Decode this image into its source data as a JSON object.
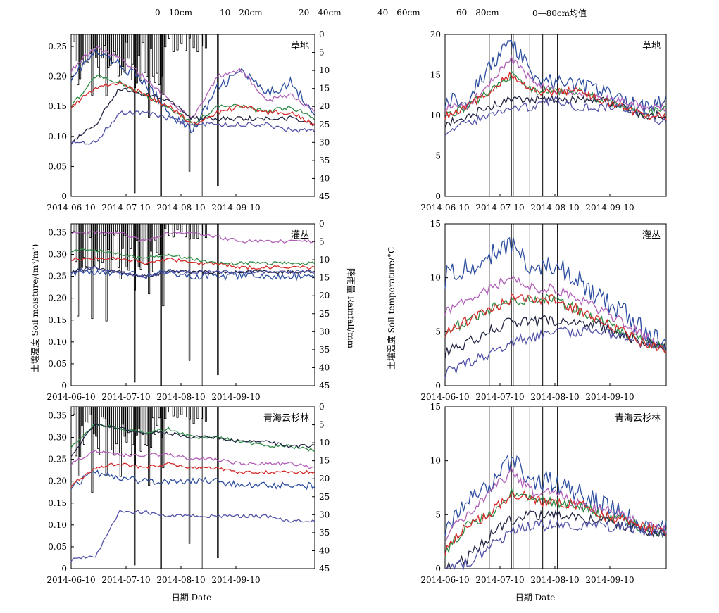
{
  "legend": [
    {
      "name": "0—10cm",
      "color": "#2e4f9f"
    },
    {
      "name": "10—20cm",
      "color": "#b05fb8"
    },
    {
      "name": "20—40cm",
      "color": "#2e8b45"
    },
    {
      "name": "40—60cm",
      "color": "#232642"
    },
    {
      "name": "60—80cm",
      "color": "#5353a8"
    },
    {
      "name": "0—80cm均值",
      "color": "#d42a2a"
    }
  ],
  "labels": {
    "moisture_ylabel": "土壤湿度 Soil moisture/(m³/m³)",
    "rain_ylabel": "降雨量 Rainfall/mm",
    "temp_ylabel": "土壤温度 Soil temperature/°C",
    "xlabel_left": "日期  Date",
    "xlabel_right": "日期  Date"
  },
  "chart_data": [
    {
      "type": "line",
      "panel": "moisture",
      "site": "草地",
      "x_ticks": [
        "2014-06-10",
        "2014-07-10",
        "2014-08-10",
        "2014-09-10"
      ],
      "ylim": [
        0,
        0.27
      ],
      "yticks": [
        0,
        0.05,
        0.1,
        0.15,
        0.2,
        0.25
      ],
      "y2lim": [
        0,
        45
      ],
      "y2ticks": [
        0,
        5,
        10,
        15,
        20,
        25,
        30,
        35,
        40,
        45
      ],
      "anchors": [
        0,
        12,
        24,
        36,
        48,
        60,
        72,
        84,
        96,
        108,
        120
      ],
      "series": [
        {
          "name": "0—10cm",
          "values": [
            0.2,
            0.24,
            0.22,
            0.19,
            0.14,
            0.11,
            0.18,
            0.21,
            0.17,
            0.19,
            0.14
          ]
        },
        {
          "name": "10—20cm",
          "values": [
            0.21,
            0.25,
            0.23,
            0.2,
            0.16,
            0.13,
            0.2,
            0.21,
            0.16,
            0.17,
            0.14
          ]
        },
        {
          "name": "20—40cm",
          "values": [
            0.15,
            0.2,
            0.19,
            0.17,
            0.15,
            0.12,
            0.15,
            0.15,
            0.14,
            0.15,
            0.13
          ]
        },
        {
          "name": "40—60cm",
          "values": [
            0.09,
            0.12,
            0.18,
            0.17,
            0.16,
            0.13,
            0.13,
            0.13,
            0.13,
            0.13,
            0.12
          ]
        },
        {
          "name": "60—80cm",
          "values": [
            0.09,
            0.09,
            0.14,
            0.14,
            0.13,
            0.12,
            0.12,
            0.12,
            0.12,
            0.11,
            0.11
          ]
        },
        {
          "name": "0—80cm均值",
          "values": [
            0.15,
            0.18,
            0.19,
            0.17,
            0.15,
            0.12,
            0.14,
            0.15,
            0.14,
            0.14,
            0.12
          ]
        }
      ]
    },
    {
      "type": "line",
      "panel": "temperature",
      "site": "草地",
      "x_ticks": [
        "2014-06-10",
        "2014-07-10",
        "2014-08-10",
        "2014-09-10"
      ],
      "ylim": [
        0,
        20
      ],
      "yticks": [
        0,
        5,
        10,
        15,
        20
      ],
      "anchors": [
        0,
        12,
        24,
        36,
        48,
        60,
        72,
        84,
        96,
        108,
        120
      ],
      "series": [
        {
          "name": "0—10cm",
          "values": [
            12,
            12,
            16,
            19,
            15,
            14,
            14,
            13,
            12,
            11,
            12
          ]
        },
        {
          "name": "10—20cm",
          "values": [
            11,
            11,
            14,
            17,
            14,
            13,
            13,
            12,
            12,
            11,
            11
          ]
        },
        {
          "name": "20—40cm",
          "values": [
            10,
            11,
            13,
            15,
            13,
            13,
            13,
            12,
            11,
            10,
            11
          ]
        },
        {
          "name": "40—60cm",
          "values": [
            9,
            10,
            11,
            12,
            12,
            12,
            12,
            12,
            11,
            10,
            10
          ]
        },
        {
          "name": "60—80cm",
          "values": [
            8,
            9,
            10,
            11,
            11,
            12,
            11,
            11,
            11,
            10,
            9
          ]
        },
        {
          "name": "0—80cm均值",
          "values": [
            10,
            11,
            13,
            15,
            13,
            13,
            13,
            12,
            11,
            10,
            10
          ]
        }
      ]
    },
    {
      "type": "line",
      "panel": "moisture",
      "site": "灌丛",
      "x_ticks": [
        "2014-06-10",
        "2014-07-10",
        "2014-08-10",
        "2014-09-10"
      ],
      "ylim": [
        0,
        0.37
      ],
      "yticks": [
        0,
        0.05,
        0.1,
        0.15,
        0.2,
        0.25,
        0.3,
        0.35
      ],
      "y2lim": [
        0,
        45
      ],
      "y2ticks": [
        0,
        5,
        10,
        15,
        20,
        25,
        30,
        35,
        40,
        45
      ],
      "anchors": [
        0,
        12,
        24,
        36,
        48,
        60,
        72,
        84,
        96,
        108,
        120
      ],
      "series": [
        {
          "name": "0—10cm",
          "values": [
            0.26,
            0.26,
            0.26,
            0.25,
            0.26,
            0.25,
            0.25,
            0.25,
            0.25,
            0.25,
            0.25
          ]
        },
        {
          "name": "10—20cm",
          "values": [
            0.35,
            0.35,
            0.35,
            0.33,
            0.35,
            0.35,
            0.34,
            0.33,
            0.33,
            0.33,
            0.33
          ]
        },
        {
          "name": "20—40cm",
          "values": [
            0.31,
            0.31,
            0.3,
            0.29,
            0.3,
            0.29,
            0.28,
            0.28,
            0.28,
            0.28,
            0.28
          ]
        },
        {
          "name": "40—60cm",
          "values": [
            0.26,
            0.27,
            0.26,
            0.25,
            0.26,
            0.26,
            0.26,
            0.26,
            0.26,
            0.26,
            0.26
          ]
        },
        {
          "name": "60—80cm",
          "values": [
            0.26,
            0.27,
            0.26,
            0.25,
            0.26,
            0.26,
            0.26,
            0.26,
            0.26,
            0.26,
            0.26
          ]
        },
        {
          "name": "0—80cm均值",
          "values": [
            0.29,
            0.29,
            0.29,
            0.28,
            0.29,
            0.28,
            0.28,
            0.27,
            0.27,
            0.27,
            0.27
          ]
        }
      ]
    },
    {
      "type": "line",
      "panel": "temperature",
      "site": "灌丛",
      "x_ticks": [
        "2014-06-10",
        "2014-07-10",
        "2014-08-10",
        "2014-09-10"
      ],
      "ylim": [
        0,
        15
      ],
      "yticks": [
        0,
        5,
        10,
        15
      ],
      "anchors": [
        0,
        12,
        24,
        36,
        48,
        60,
        72,
        84,
        96,
        108,
        120
      ],
      "series": [
        {
          "name": "0—10cm",
          "values": [
            10,
            11,
            12,
            13,
            11,
            11,
            10,
            8,
            7,
            5,
            3.5
          ]
        },
        {
          "name": "10—20cm",
          "values": [
            7,
            8,
            9,
            10,
            9,
            9,
            8,
            7,
            6,
            4.5,
            3.5
          ]
        },
        {
          "name": "20—40cm",
          "values": [
            5,
            6,
            7,
            8,
            8,
            8,
            7,
            6,
            5,
            4,
            3.5
          ]
        },
        {
          "name": "40—60cm",
          "values": [
            3,
            4,
            5,
            6,
            6,
            6,
            6,
            5.5,
            4.5,
            4,
            3.5
          ]
        },
        {
          "name": "60—80cm",
          "values": [
            1.2,
            2,
            3,
            4,
            4.5,
            5,
            5,
            5,
            4.5,
            4,
            3.5
          ]
        },
        {
          "name": "0—80cm均值",
          "values": [
            5,
            6,
            7,
            8,
            8,
            8,
            7,
            6,
            5,
            4,
            3.5
          ]
        }
      ]
    },
    {
      "type": "line",
      "panel": "moisture",
      "site": "青海云杉林",
      "x_ticks": [
        "2014-06-10",
        "2014-07-10",
        "2014-08-10",
        "2014-09-10"
      ],
      "ylim": [
        0,
        0.37
      ],
      "yticks": [
        0,
        0.05,
        0.1,
        0.15,
        0.2,
        0.25,
        0.3,
        0.35
      ],
      "y2lim": [
        0,
        45
      ],
      "y2ticks": [
        0,
        5,
        10,
        15,
        20,
        25,
        30,
        35,
        40,
        45
      ],
      "anchors": [
        0,
        12,
        24,
        36,
        48,
        60,
        72,
        84,
        96,
        108,
        120
      ],
      "series": [
        {
          "name": "0—10cm",
          "values": [
            0.19,
            0.22,
            0.21,
            0.2,
            0.2,
            0.2,
            0.2,
            0.19,
            0.19,
            0.19,
            0.19
          ]
        },
        {
          "name": "10—20cm",
          "values": [
            0.24,
            0.27,
            0.26,
            0.26,
            0.26,
            0.25,
            0.25,
            0.24,
            0.24,
            0.24,
            0.23
          ]
        },
        {
          "name": "20—40cm",
          "values": [
            0.28,
            0.33,
            0.32,
            0.31,
            0.32,
            0.3,
            0.3,
            0.29,
            0.28,
            0.28,
            0.27
          ]
        },
        {
          "name": "40—60cm",
          "values": [
            0.26,
            0.33,
            0.32,
            0.31,
            0.31,
            0.3,
            0.3,
            0.29,
            0.29,
            0.28,
            0.28
          ]
        },
        {
          "name": "60—80cm",
          "values": [
            0.02,
            0.03,
            0.13,
            0.13,
            0.12,
            0.12,
            0.12,
            0.12,
            0.12,
            0.11,
            0.11
          ]
        },
        {
          "name": "0—80cm均值",
          "values": [
            0.19,
            0.23,
            0.24,
            0.23,
            0.24,
            0.23,
            0.23,
            0.22,
            0.22,
            0.22,
            0.22
          ]
        }
      ]
    },
    {
      "type": "line",
      "panel": "temperature",
      "site": "青海云杉林",
      "x_ticks": [
        "2014-06-10",
        "2014-07-10",
        "2014-08-10",
        "2014-09-10"
      ],
      "ylim": [
        0,
        15
      ],
      "yticks": [
        0,
        5,
        10,
        15
      ],
      "anchors": [
        0,
        12,
        24,
        36,
        48,
        60,
        72,
        84,
        96,
        108,
        120
      ],
      "series": [
        {
          "name": "0—10cm",
          "values": [
            4,
            6,
            8,
            10,
            8,
            8,
            7,
            6,
            5,
            4,
            3.5
          ]
        },
        {
          "name": "10—20cm",
          "values": [
            3,
            5,
            7,
            9,
            7,
            7,
            6,
            5.5,
            5,
            4,
            3.5
          ]
        },
        {
          "name": "20—40cm",
          "values": [
            1.5,
            4,
            5,
            7,
            6.5,
            6,
            6,
            5,
            4.5,
            3.8,
            3.3
          ]
        },
        {
          "name": "40—60cm",
          "values": [
            0,
            1,
            3,
            4.5,
            5,
            5,
            4.8,
            4.5,
            4,
            3.6,
            3.3
          ]
        },
        {
          "name": "60—80cm",
          "values": [
            0,
            0.5,
            2,
            3.5,
            4,
            4,
            4,
            4,
            3.8,
            3.5,
            3.3
          ]
        },
        {
          "name": "0—80cm均值",
          "values": [
            1.7,
            4,
            5,
            7,
            6.5,
            6,
            6,
            5,
            4.5,
            3.8,
            3.3
          ]
        }
      ]
    }
  ]
}
